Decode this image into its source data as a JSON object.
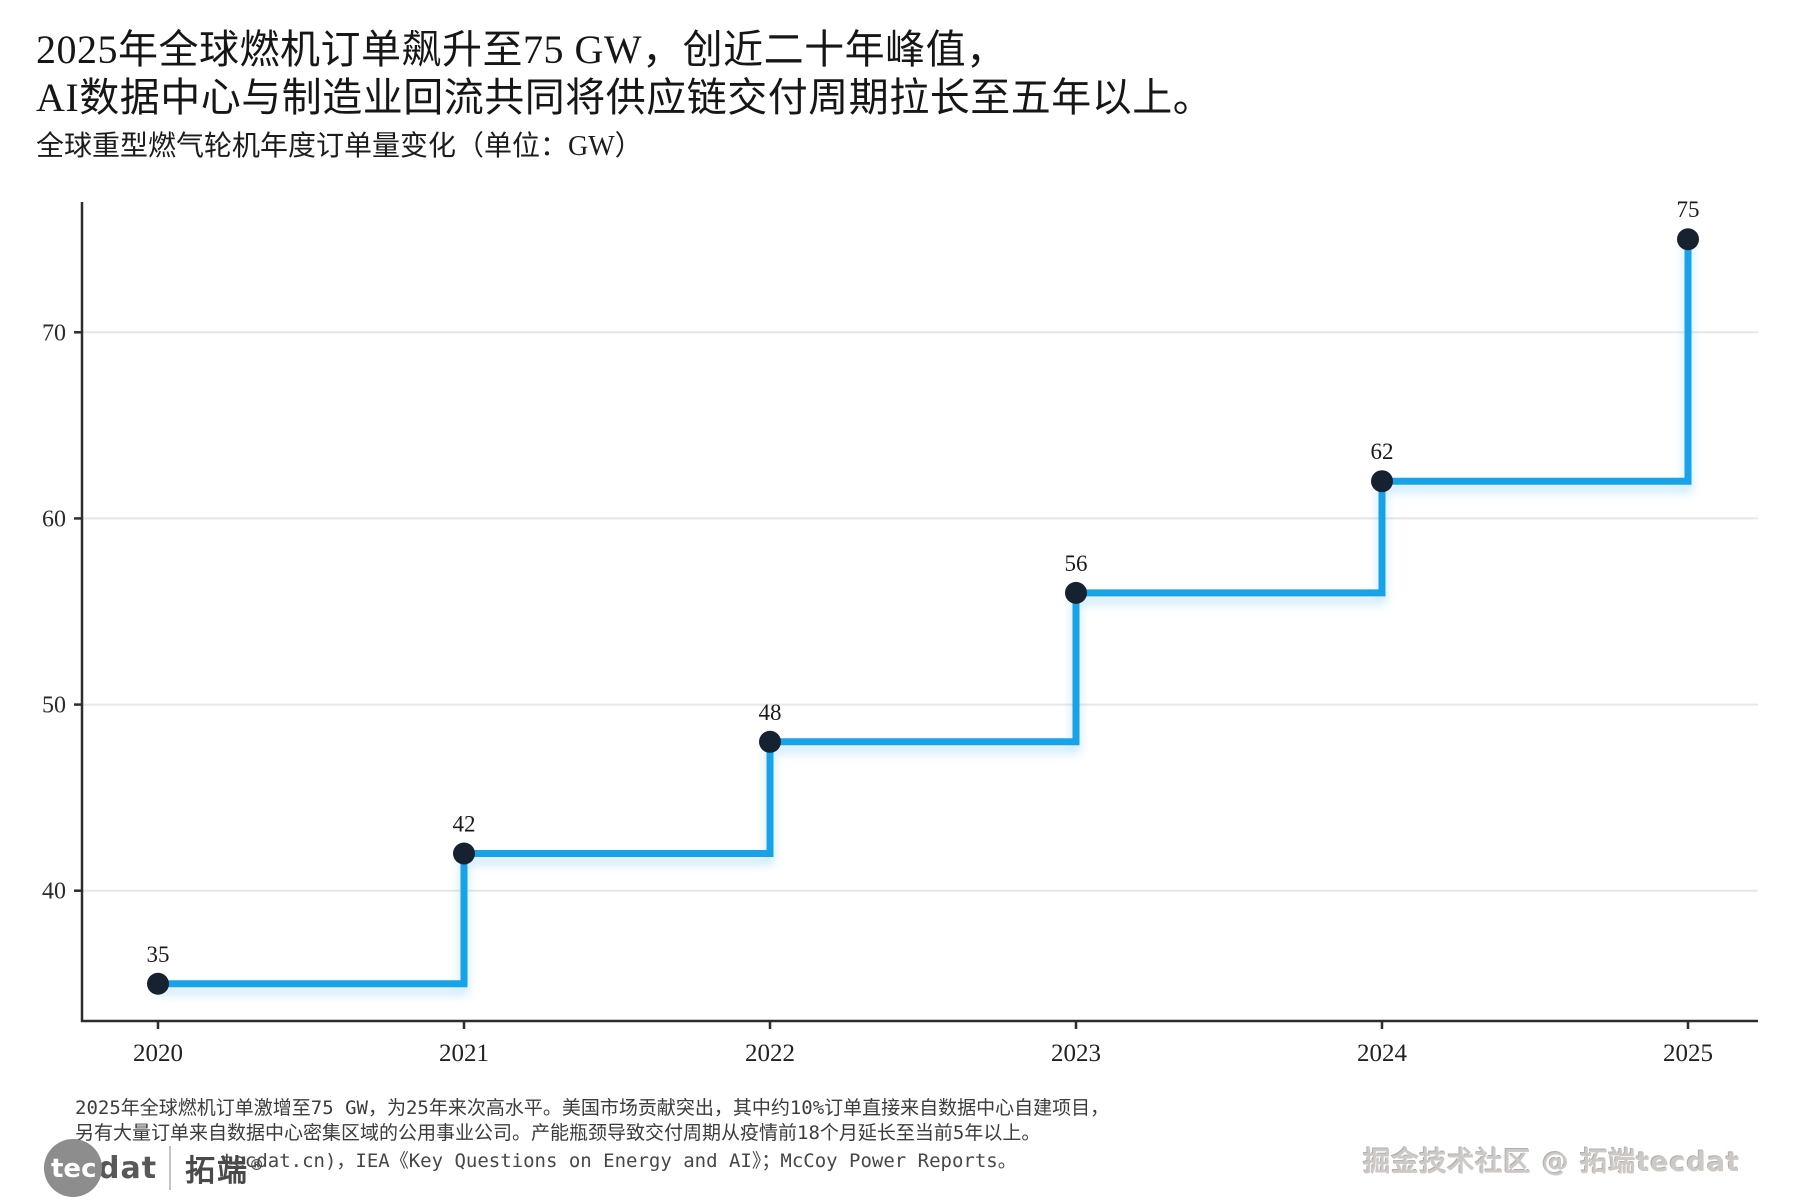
{
  "header": {
    "title_line1": "2025年全球燃机订单飙升至75 GW，创近二十年峰值，",
    "title_line2": "AI数据中心与制造业回流共同将供应链交付周期拉长至五年以上。",
    "subtitle": "全球重型燃气轮机年度订单量变化（单位：GW）"
  },
  "chart_data": {
    "type": "line",
    "subtype": "step",
    "title": "全球重型燃气轮机年度订单量变化（单位：GW）",
    "categories": [
      "2020",
      "2021",
      "2022",
      "2023",
      "2024",
      "2025"
    ],
    "values": [
      35,
      42,
      48,
      56,
      62,
      75
    ],
    "unit": "GW",
    "xlabel": "",
    "ylabel": "",
    "y_ticks": [
      40,
      50,
      60,
      70
    ],
    "ylim": [
      33,
      77
    ],
    "grid": "horizontal",
    "legend_position": "none",
    "line_color": "#18a3e8",
    "point_color": "#16222f",
    "grid_color": "#e7e7e7",
    "axis_color": "#2d2d2d",
    "label_color": "#1a1a1a"
  },
  "footer": {
    "caption_line1": "2025年全球燃机订单激增至75 GW，为25年来次高水平。美国市场贡献突出，其中约10%订单直接来自数据中心自建项目，",
    "caption_line2": "另有大量订单来自数据中心密集区域的公用事业公司。产能瓶颈导致交付周期从疫情前18个月延长至当前5年以上。",
    "source": "tecdat.cn)，IEA《Key Questions on Energy and AI》；McCoy Power Reports。"
  },
  "branding": {
    "logo_circle_text": "tec",
    "logo_text": "dat",
    "logo_cn": "拓端",
    "logo_reg": "®",
    "watermark": "掘金技术社区 @ 拓端tecdat"
  }
}
